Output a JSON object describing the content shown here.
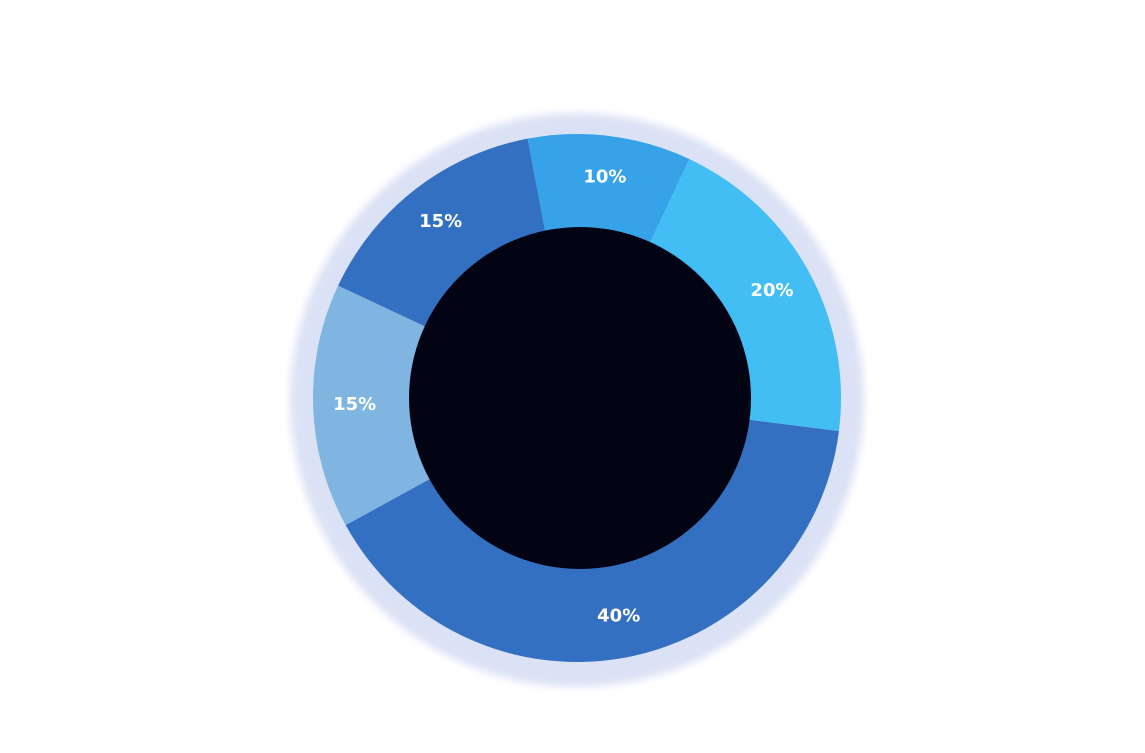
{
  "chart_data": {
    "type": "donut",
    "values": [
      10,
      20,
      40,
      15,
      15
    ],
    "value_labels": [
      "10%",
      "20%",
      "40%",
      "15%",
      "15%"
    ],
    "colors": [
      "#36a3e8",
      "#43bef4",
      "#3470c1",
      "#7fb5e0",
      "#3470c1"
    ]
  }
}
